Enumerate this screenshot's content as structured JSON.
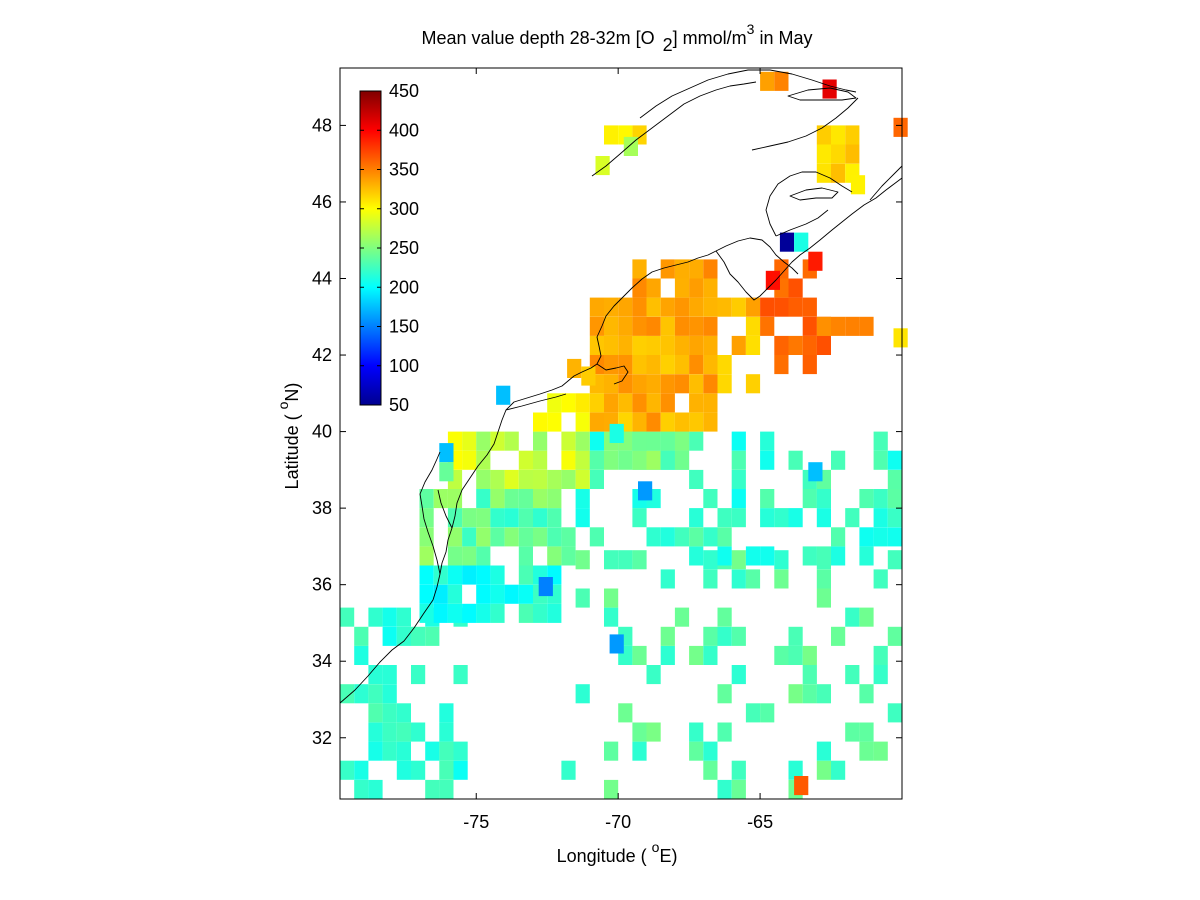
{
  "title": {
    "prefix": "Mean value depth 28-32m [O",
    "subscript": "2",
    "suffix_a": "] mmol/m",
    "superscript": "3",
    "suffix_b": " in May"
  },
  "xlabel": {
    "prefix": "Longitude ( ",
    "degree": "o",
    "suffix": "E)"
  },
  "ylabel": {
    "prefix": "Latitude ( ",
    "degree": "o",
    "suffix": "N)"
  },
  "chart_data": {
    "type": "heatmap",
    "title": "Mean value depth 28-32m [O2] mmol/m3 in May",
    "xlabel": "Longitude ( oE)",
    "ylabel": "Latitude ( oN)",
    "xlim": [
      -79.8,
      -60.0
    ],
    "ylim": [
      30.4,
      49.5
    ],
    "xticks": [
      -75,
      -70,
      -65
    ],
    "xtick_labels": [
      "-75",
      "-70",
      "-65"
    ],
    "yticks": [
      32,
      34,
      36,
      38,
      40,
      42,
      44,
      46,
      48
    ],
    "ytick_labels": [
      "32",
      "34",
      "36",
      "38",
      "40",
      "42",
      "44",
      "46",
      "48"
    ],
    "grid": false,
    "cell_size_deg": 0.5,
    "colorbar": {
      "location": "inside top-left",
      "range": [
        50,
        450
      ],
      "ticks": [
        50,
        100,
        150,
        200,
        250,
        300,
        350,
        400,
        450
      ],
      "tick_labels": [
        "50",
        "100",
        "150",
        "200",
        "250",
        "300",
        "350",
        "400",
        "450"
      ],
      "colormap": "jet"
    },
    "zones": [
      {
        "lon": [
          -79.8,
          -75.5
        ],
        "lat": [
          30.4,
          35.0
        ],
        "mean": 218,
        "amp": 14,
        "density": 0.55
      },
      {
        "lon": [
          -77.0,
          -75.5
        ],
        "lat": [
          35.0,
          36.5
        ],
        "mean": 205,
        "amp": 15,
        "density": 0.85
      },
      {
        "lon": [
          -75.5,
          -72.0
        ],
        "lat": [
          35.0,
          36.5
        ],
        "mean": 212,
        "amp": 18,
        "density": 0.8
      },
      {
        "lon": [
          -72.0,
          -60.0
        ],
        "lat": [
          30.4,
          36.5
        ],
        "mean": 232,
        "amp": 16,
        "density": 0.28
      },
      {
        "lon": [
          -77.0,
          -72.0
        ],
        "lat": [
          36.5,
          38.5
        ],
        "mean": 238,
        "amp": 25,
        "density": 0.9
      },
      {
        "lon": [
          -72.0,
          -60.0
        ],
        "lat": [
          36.5,
          40.0
        ],
        "mean": 222,
        "amp": 18,
        "density": 0.35
      },
      {
        "lon": [
          -76.0,
          -71.0
        ],
        "lat": [
          38.5,
          40.0
        ],
        "mean": 278,
        "amp": 22,
        "density": 0.9
      },
      {
        "lon": [
          -71.0,
          -67.5
        ],
        "lat": [
          39.0,
          40.0
        ],
        "mean": 245,
        "amp": 20,
        "density": 0.9
      },
      {
        "lon": [
          -73.0,
          -71.0
        ],
        "lat": [
          40.0,
          41.0
        ],
        "mean": 300,
        "amp": 15,
        "density": 0.85
      },
      {
        "lon": [
          -71.0,
          -66.5
        ],
        "lat": [
          40.0,
          43.5
        ],
        "mean": 332,
        "amp": 16,
        "density": 0.95
      },
      {
        "lon": [
          -66.5,
          -65.0
        ],
        "lat": [
          41.0,
          43.5
        ],
        "mean": 325,
        "amp": 15,
        "density": 0.75
      },
      {
        "lon": [
          -69.5,
          -66.5
        ],
        "lat": [
          43.5,
          44.5
        ],
        "mean": 340,
        "amp": 10,
        "density": 0.9
      },
      {
        "lon": [
          -65.0,
          -62.5
        ],
        "lat": [
          41.5,
          44.5
        ],
        "mean": 360,
        "amp": 10,
        "density": 0.55
      },
      {
        "lon": [
          -63.0,
          -61.0
        ],
        "lat": [
          42.5,
          43.0
        ],
        "mean": 345,
        "amp": 8,
        "density": 0.8
      },
      {
        "lon": [
          -70.5,
          -69.0
        ],
        "lat": [
          47.5,
          48.0
        ],
        "mean": 310,
        "amp": 8,
        "density": 1.0
      },
      {
        "lon": [
          -63.0,
          -61.5
        ],
        "lat": [
          46.5,
          48.0
        ],
        "mean": 318,
        "amp": 14,
        "density": 1.0
      },
      {
        "lon": [
          -65.0,
          -64.0
        ],
        "lat": [
          48.9,
          49.4
        ],
        "mean": 345,
        "amp": 8,
        "density": 1.0
      }
    ],
    "extra_cells": [
      {
        "lon": -64.3,
        "lat": 44.7,
        "value": 60
      },
      {
        "lon": -63.8,
        "lat": 44.7,
        "value": 210
      },
      {
        "lon": -62.8,
        "lat": 48.7,
        "value": 410
      },
      {
        "lon": -63.3,
        "lat": 44.2,
        "value": 390
      },
      {
        "lon": -64.8,
        "lat": 43.7,
        "value": 395
      },
      {
        "lon": -74.3,
        "lat": 40.7,
        "value": 175
      },
      {
        "lon": -70.3,
        "lat": 34.2,
        "value": 160
      },
      {
        "lon": -72.8,
        "lat": 35.7,
        "value": 150
      },
      {
        "lon": -69.3,
        "lat": 38.2,
        "value": 160
      },
      {
        "lon": -76.3,
        "lat": 39.2,
        "value": 175
      },
      {
        "lon": -63.3,
        "lat": 38.7,
        "value": 175
      },
      {
        "lon": -63.8,
        "lat": 30.5,
        "value": 365
      },
      {
        "lon": -60.3,
        "lat": 47.7,
        "value": 360
      },
      {
        "lon": -60.3,
        "lat": 42.2,
        "value": 310
      },
      {
        "lon": -61.8,
        "lat": 46.2,
        "value": 305
      },
      {
        "lon": -76.3,
        "lat": 38.7,
        "value": 240
      },
      {
        "lon": -69.8,
        "lat": 47.2,
        "value": 265
      },
      {
        "lon": -70.8,
        "lat": 46.7,
        "value": 285
      },
      {
        "lon": -71.3,
        "lat": 41.2,
        "value": 320
      },
      {
        "lon": -71.8,
        "lat": 41.4,
        "value": 330
      },
      {
        "lon": -70.3,
        "lat": 39.7,
        "value": 210
      }
    ]
  }
}
